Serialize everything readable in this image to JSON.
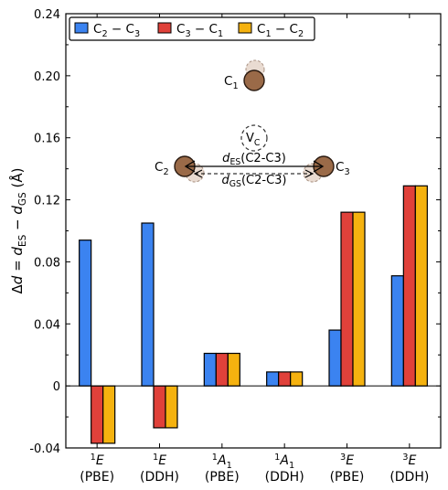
{
  "chart_data": {
    "type": "bar",
    "categories": [
      {
        "sup": "1",
        "main": "E",
        "method": "(PBE)"
      },
      {
        "sup": "1",
        "main": "E",
        "method": "(DDH)"
      },
      {
        "sup": "1",
        "main": "A",
        "sub": "1",
        "method": "(PBE)"
      },
      {
        "sup": "1",
        "main": "A",
        "sub": "1",
        "method": "(DDH)"
      },
      {
        "sup": "3",
        "main": "E",
        "method": "(PBE)"
      },
      {
        "sup": "3",
        "main": "E",
        "method": "(DDH)"
      }
    ],
    "series": [
      {
        "name": "C2 – C3",
        "label": {
          "a": "C",
          "a_sub": "2",
          "b": "C",
          "b_sub": "3"
        },
        "color": "#3b83f0",
        "values": [
          0.094,
          0.105,
          0.021,
          0.009,
          0.036,
          0.071
        ]
      },
      {
        "name": "C3 – C1",
        "label": {
          "a": "C",
          "a_sub": "3",
          "b": "C",
          "b_sub": "1"
        },
        "color": "#e0413a",
        "values": [
          -0.037,
          -0.027,
          0.021,
          0.009,
          0.112,
          0.129
        ]
      },
      {
        "name": "C1 – C2",
        "label": {
          "a": "C",
          "a_sub": "1",
          "b": "C",
          "b_sub": "2"
        },
        "color": "#f5b20f",
        "values": [
          -0.037,
          -0.027,
          0.021,
          0.009,
          0.112,
          0.129
        ]
      }
    ],
    "ylim": [
      -0.04,
      0.24
    ],
    "yticks": [
      "-0.04",
      "0",
      "0.04",
      "0.08",
      "0.12",
      "0.16",
      "0.20",
      "0.24"
    ],
    "ylabel": {
      "prefix": "Δ",
      "d1": "d",
      "eq": " = ",
      "d2": "d",
      "sub_es": "ES",
      "minus": " − ",
      "d3": "d",
      "sub_gs": "GS",
      "unit": " (Å)"
    },
    "legend_position": "top-left",
    "inset": {
      "c1": {
        "main": "C",
        "sub": "1"
      },
      "c2": {
        "main": "C",
        "sub": "2"
      },
      "c3": {
        "main": "C",
        "sub": "3"
      },
      "vacancy": {
        "main": "V",
        "sub": "C"
      },
      "d_es": {
        "main": "d",
        "sub": "ES",
        "rest": "(C2-C3)"
      },
      "d_gs": {
        "main": "d",
        "sub": "GS",
        "rest": "(C2-C3)"
      }
    }
  }
}
